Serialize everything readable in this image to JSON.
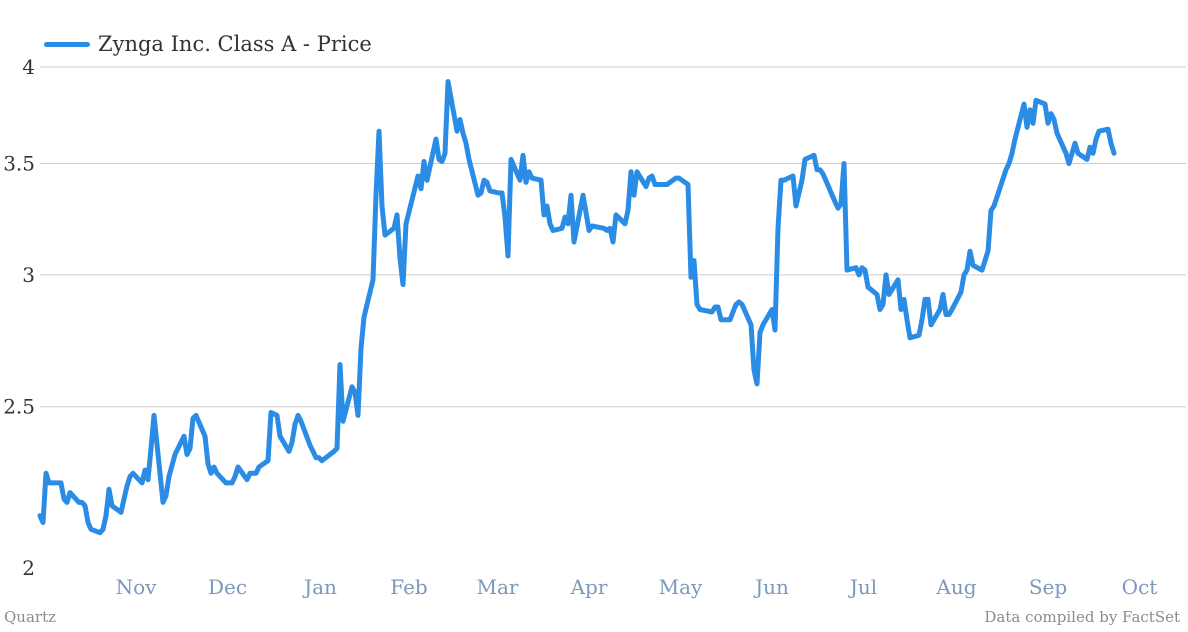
{
  "colors": {
    "line": "#2b8ce6",
    "grid": "#cccccc",
    "ytick": "#333333",
    "xtick": "#7b98bd"
  },
  "footer": {
    "left": "Quartz",
    "right": "Data compiled by FactSet"
  },
  "chart_data": {
    "type": "line",
    "title": "",
    "xlabel": "",
    "ylabel": "",
    "y_scale": "log",
    "ylim": [
      2,
      4
    ],
    "yticks": [
      2,
      2.5,
      3,
      3.5,
      4
    ],
    "ytick_labels": [
      "2",
      "2.5",
      "3",
      "3.5",
      "4"
    ],
    "xticks": [
      "Nov",
      "Dec",
      "Jan",
      "Feb",
      "Mar",
      "Apr",
      "May",
      "Jun",
      "Jul",
      "Aug",
      "Sep",
      "Oct"
    ],
    "grid": true,
    "legend": "top-left",
    "series": [
      {
        "name": "Zynga Inc. Class A - Price",
        "points": [
          [
            "Oct 15",
            2.15
          ],
          [
            "Oct 16",
            2.13
          ],
          [
            "Oct 17",
            2.28
          ],
          [
            "Oct 18",
            2.25
          ],
          [
            "Oct 21",
            2.25
          ],
          [
            "Oct 22",
            2.25
          ],
          [
            "Oct 23",
            2.2
          ],
          [
            "Oct 24",
            2.19
          ],
          [
            "Oct 25",
            2.22
          ],
          [
            "Oct 28",
            2.19
          ],
          [
            "Oct 29",
            2.19
          ],
          [
            "Oct 30",
            2.18
          ],
          [
            "Oct 31",
            2.13
          ],
          [
            "Nov 1",
            2.11
          ],
          [
            "Nov 4",
            2.1
          ],
          [
            "Nov 5",
            2.11
          ],
          [
            "Nov 6",
            2.15
          ],
          [
            "Nov 7",
            2.23
          ],
          [
            "Nov 8",
            2.18
          ],
          [
            "Nov 11",
            2.16
          ],
          [
            "Nov 12",
            2.2
          ],
          [
            "Nov 13",
            2.24
          ],
          [
            "Nov 14",
            2.27
          ],
          [
            "Nov 15",
            2.28
          ],
          [
            "Nov 18",
            2.25
          ],
          [
            "Nov 19",
            2.29
          ],
          [
            "Nov 20",
            2.26
          ],
          [
            "Nov 21",
            2.36
          ],
          [
            "Nov 22",
            2.47
          ],
          [
            "Nov 25",
            2.19
          ],
          [
            "Nov 26",
            2.21
          ],
          [
            "Nov 27",
            2.27
          ],
          [
            "Nov 29",
            2.34
          ],
          [
            "Dec 2",
            2.4
          ],
          [
            "Dec 3",
            2.34
          ],
          [
            "Dec 4",
            2.36
          ],
          [
            "Dec 5",
            2.46
          ],
          [
            "Dec 6",
            2.47
          ],
          [
            "Dec 9",
            2.4
          ],
          [
            "Dec 10",
            2.31
          ],
          [
            "Dec 11",
            2.28
          ],
          [
            "Dec 12",
            2.3
          ],
          [
            "Dec 13",
            2.28
          ],
          [
            "Dec 16",
            2.25
          ],
          [
            "Dec 17",
            2.25
          ],
          [
            "Dec 18",
            2.25
          ],
          [
            "Dec 19",
            2.27
          ],
          [
            "Dec 20",
            2.3
          ],
          [
            "Dec 23",
            2.26
          ],
          [
            "Dec 24",
            2.28
          ],
          [
            "Dec 26",
            2.28
          ],
          [
            "Dec 27",
            2.3
          ],
          [
            "Dec 30",
            2.32
          ],
          [
            "Dec 31",
            2.48
          ],
          [
            "Jan 2",
            2.47
          ],
          [
            "Jan 3",
            2.4
          ],
          [
            "Jan 6",
            2.35
          ],
          [
            "Jan 7",
            2.38
          ],
          [
            "Jan 8",
            2.44
          ],
          [
            "Jan 9",
            2.47
          ],
          [
            "Jan 10",
            2.45
          ],
          [
            "Jan 13",
            2.37
          ],
          [
            "Jan 14",
            2.35
          ],
          [
            "Jan 15",
            2.33
          ],
          [
            "Jan 16",
            2.33
          ],
          [
            "Jan 17",
            2.32
          ],
          [
            "Jan 21",
            2.35
          ],
          [
            "Jan 22",
            2.36
          ],
          [
            "Jan 23",
            2.65
          ],
          [
            "Jan 24",
            2.45
          ],
          [
            "Jan 27",
            2.57
          ],
          [
            "Jan 28",
            2.55
          ],
          [
            "Jan 29",
            2.47
          ],
          [
            "Jan 30",
            2.71
          ],
          [
            "Jan 31",
            2.83
          ],
          [
            "Feb 3",
            2.98
          ],
          [
            "Feb 4",
            3.35
          ],
          [
            "Feb 5",
            3.66
          ],
          [
            "Feb 6",
            3.3
          ],
          [
            "Feb 7",
            3.17
          ],
          [
            "Feb 10",
            3.2
          ],
          [
            "Feb 11",
            3.26
          ],
          [
            "Feb 12",
            3.07
          ],
          [
            "Feb 13",
            2.96
          ],
          [
            "Feb 14",
            3.22
          ],
          [
            "Feb 18",
            3.44
          ],
          [
            "Feb 19",
            3.38
          ],
          [
            "Feb 20",
            3.51
          ],
          [
            "Feb 21",
            3.42
          ],
          [
            "Feb 24",
            3.62
          ],
          [
            "Feb 25",
            3.52
          ],
          [
            "Feb 26",
            3.51
          ],
          [
            "Feb 27",
            3.55
          ],
          [
            "Feb 28",
            3.92
          ],
          [
            "Mar 3",
            3.66
          ],
          [
            "Mar 4",
            3.72
          ],
          [
            "Mar 5",
            3.65
          ],
          [
            "Mar 6",
            3.6
          ],
          [
            "Mar 7",
            3.52
          ],
          [
            "Mar 10",
            3.35
          ],
          [
            "Mar 11",
            3.36
          ],
          [
            "Mar 12",
            3.42
          ],
          [
            "Mar 13",
            3.41
          ],
          [
            "Mar 14",
            3.37
          ],
          [
            "Mar 17",
            3.36
          ],
          [
            "Mar 18",
            3.36
          ],
          [
            "Mar 19",
            3.25
          ],
          [
            "Mar 20",
            3.08
          ],
          [
            "Mar 21",
            3.52
          ],
          [
            "Mar 24",
            3.42
          ],
          [
            "Mar 25",
            3.54
          ],
          [
            "Mar 26",
            3.41
          ],
          [
            "Mar 27",
            3.46
          ],
          [
            "Mar 28",
            3.43
          ],
          [
            "Mar 31",
            3.42
          ],
          [
            "Apr 1",
            3.26
          ],
          [
            "Apr 2",
            3.3
          ],
          [
            "Apr 3",
            3.22
          ],
          [
            "Apr 4",
            3.19
          ],
          [
            "Apr 7",
            3.2
          ],
          [
            "Apr 8",
            3.25
          ],
          [
            "Apr 9",
            3.22
          ],
          [
            "Apr 10",
            3.35
          ],
          [
            "Apr 11",
            3.14
          ],
          [
            "Apr 14",
            3.35
          ],
          [
            "Apr 15",
            3.27
          ],
          [
            "Apr 16",
            3.19
          ],
          [
            "Apr 17",
            3.21
          ],
          [
            "Apr 21",
            3.2
          ],
          [
            "Apr 22",
            3.19
          ],
          [
            "Apr 23",
            3.2
          ],
          [
            "Apr 24",
            3.14
          ],
          [
            "Apr 25",
            3.26
          ],
          [
            "Apr 28",
            3.22
          ],
          [
            "Apr 29",
            3.28
          ],
          [
            "Apr 30",
            3.46
          ],
          [
            "May 1",
            3.35
          ],
          [
            "May 2",
            3.46
          ],
          [
            "May 5",
            3.39
          ],
          [
            "May 6",
            3.43
          ],
          [
            "May 7",
            3.44
          ],
          [
            "May 8",
            3.4
          ],
          [
            "May 9",
            3.4
          ],
          [
            "May 12",
            3.4
          ],
          [
            "May 13",
            3.41
          ],
          [
            "May 14",
            3.42
          ],
          [
            "May 15",
            3.43
          ],
          [
            "May 16",
            3.43
          ],
          [
            "May 19",
            3.4
          ],
          [
            "May 20",
            2.99
          ],
          [
            "May 21",
            3.06
          ],
          [
            "May 22",
            2.88
          ],
          [
            "May 23",
            2.86
          ],
          [
            "May 27",
            2.85
          ],
          [
            "May 28",
            2.87
          ],
          [
            "May 29",
            2.87
          ],
          [
            "May 30",
            2.82
          ],
          [
            "Jun 2",
            2.82
          ],
          [
            "Jun 3",
            2.85
          ],
          [
            "Jun 4",
            2.88
          ],
          [
            "Jun 5",
            2.89
          ],
          [
            "Jun 6",
            2.88
          ],
          [
            "Jun 9",
            2.8
          ],
          [
            "Jun 10",
            2.63
          ],
          [
            "Jun 11",
            2.58
          ],
          [
            "Jun 12",
            2.77
          ],
          [
            "Jun 13",
            2.8
          ],
          [
            "Jun 16",
            2.86
          ],
          [
            "Jun 17",
            2.78
          ],
          [
            "Jun 18",
            3.2
          ],
          [
            "Jun 19",
            3.42
          ],
          [
            "Jun 20",
            3.42
          ],
          [
            "Jun 23",
            3.44
          ],
          [
            "Jun 24",
            3.3
          ],
          [
            "Jun 25",
            3.36
          ],
          [
            "Jun 26",
            3.42
          ],
          [
            "Jun 27",
            3.52
          ],
          [
            "Jun 30",
            3.54
          ],
          [
            "Jul 1",
            3.47
          ],
          [
            "Jul 2",
            3.47
          ],
          [
            "Jul 3",
            3.45
          ],
          [
            "Jul 7",
            3.32
          ],
          [
            "Jul 8",
            3.29
          ],
          [
            "Jul 9",
            3.31
          ],
          [
            "Jul 10",
            3.5
          ],
          [
            "Jul 11",
            3.02
          ],
          [
            "Jul 14",
            3.03
          ],
          [
            "Jul 15",
            3.0
          ],
          [
            "Jul 16",
            3.03
          ],
          [
            "Jul 17",
            3.02
          ],
          [
            "Jul 18",
            2.95
          ],
          [
            "Jul 21",
            2.92
          ],
          [
            "Jul 22",
            2.86
          ],
          [
            "Jul 23",
            2.88
          ],
          [
            "Jul 24",
            3.0
          ],
          [
            "Jul 25",
            2.92
          ],
          [
            "Jul 28",
            2.98
          ],
          [
            "Jul 29",
            2.86
          ],
          [
            "Jul 30",
            2.9
          ],
          [
            "Jul 31",
            2.82
          ],
          [
            "Aug 1",
            2.75
          ],
          [
            "Aug 4",
            2.76
          ],
          [
            "Aug 5",
            2.82
          ],
          [
            "Aug 6",
            2.9
          ],
          [
            "Aug 7",
            2.9
          ],
          [
            "Aug 8",
            2.8
          ],
          [
            "Aug 11",
            2.86
          ],
          [
            "Aug 12",
            2.92
          ],
          [
            "Aug 13",
            2.84
          ],
          [
            "Aug 14",
            2.84
          ],
          [
            "Aug 15",
            2.86
          ],
          [
            "Aug 18",
            2.93
          ],
          [
            "Aug 19",
            3.0
          ],
          [
            "Aug 20",
            3.02
          ],
          [
            "Aug 21",
            3.1
          ],
          [
            "Aug 22",
            3.04
          ],
          [
            "Aug 25",
            3.02
          ],
          [
            "Aug 26",
            3.06
          ],
          [
            "Aug 27",
            3.1
          ],
          [
            "Aug 28",
            3.28
          ],
          [
            "Aug 29",
            3.3
          ],
          [
            "Sep 2",
            3.47
          ],
          [
            "Sep 3",
            3.5
          ],
          [
            "Sep 4",
            3.55
          ],
          [
            "Sep 5",
            3.62
          ],
          [
            "Sep 8",
            3.8
          ],
          [
            "Sep 9",
            3.68
          ],
          [
            "Sep 10",
            3.77
          ],
          [
            "Sep 11",
            3.7
          ],
          [
            "Sep 12",
            3.82
          ],
          [
            "Sep 15",
            3.8
          ],
          [
            "Sep 16",
            3.7
          ],
          [
            "Sep 17",
            3.75
          ],
          [
            "Sep 18",
            3.72
          ],
          [
            "Sep 19",
            3.65
          ],
          [
            "Sep 22",
            3.55
          ],
          [
            "Sep 23",
            3.5
          ],
          [
            "Sep 24",
            3.55
          ],
          [
            "Sep 25",
            3.6
          ],
          [
            "Sep 26",
            3.55
          ],
          [
            "Sep 29",
            3.52
          ],
          [
            "Sep 30",
            3.58
          ],
          [
            "Oct 1",
            3.55
          ],
          [
            "Oct 2",
            3.62
          ],
          [
            "Oct 3",
            3.66
          ],
          [
            "Oct 6",
            3.67
          ],
          [
            "Oct 7",
            3.6
          ],
          [
            "Oct 8",
            3.55
          ]
        ]
      }
    ]
  }
}
